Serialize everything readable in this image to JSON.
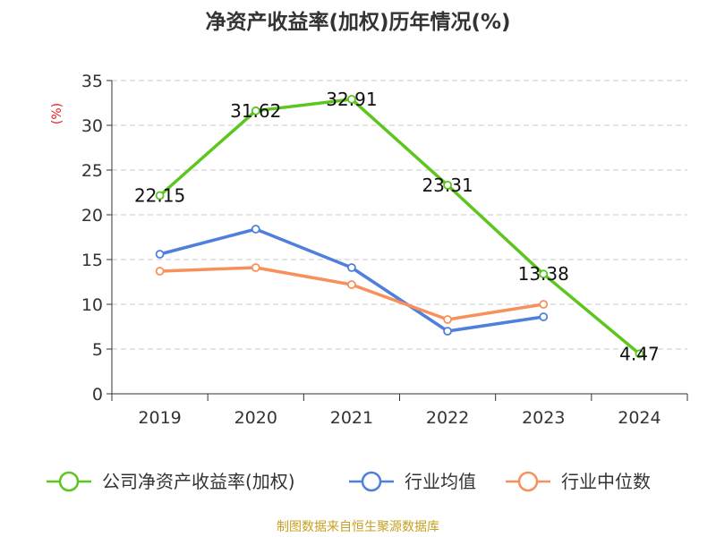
{
  "chart_data": {
    "type": "line",
    "title": "净资产收益率(加权)历年情况(%)",
    "ylabel": "(%)",
    "categories": [
      "2019",
      "2020",
      "2021",
      "2022",
      "2023",
      "2024"
    ],
    "ylim": [
      0,
      35
    ],
    "yticks": [
      0,
      5,
      10,
      15,
      20,
      25,
      30,
      35
    ],
    "grid": true,
    "legend_position": "bottom",
    "series": [
      {
        "name": "公司净资产收益率(加权)",
        "color": "#5cc51e",
        "values": [
          22.15,
          31.62,
          32.91,
          23.31,
          13.38,
          4.47
        ],
        "data_labels": [
          "22.15",
          "31.62",
          "32.91",
          "23.31",
          "13.38",
          "4.47"
        ]
      },
      {
        "name": "行业均值",
        "color": "#4f7fdc",
        "values": [
          15.6,
          18.4,
          14.1,
          7.0,
          8.6,
          null
        ]
      },
      {
        "name": "行业中位数",
        "color": "#f7905a",
        "values": [
          13.7,
          14.1,
          12.2,
          8.3,
          10.0,
          null
        ]
      }
    ],
    "source": "制图数据来自恒生聚源数据库"
  }
}
